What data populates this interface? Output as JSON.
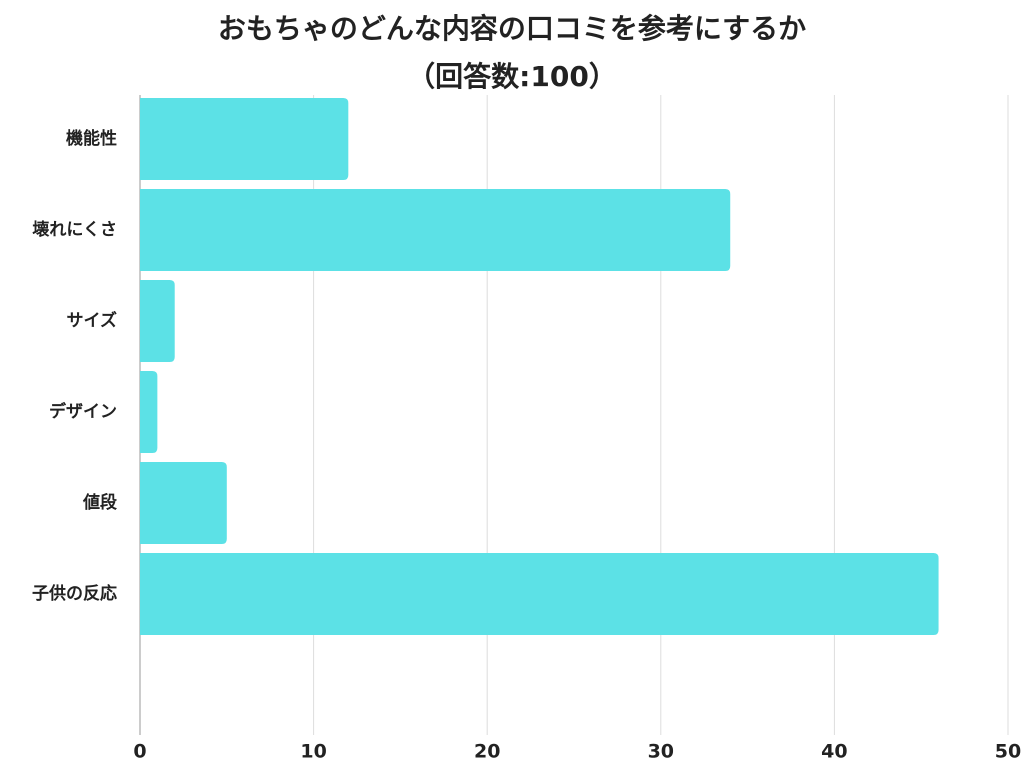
{
  "chart_data": {
    "type": "bar",
    "orientation": "horizontal",
    "title": "おもちゃのどんな内容の口コミを参考にするか",
    "subtitle": "（回答数:100）",
    "categories": [
      "機能性",
      "壊れにくさ",
      "サイズ",
      "デザイン",
      "値段",
      "子供の反応"
    ],
    "values": [
      12,
      34,
      2,
      1,
      5,
      46
    ],
    "color": "#5ce1e6",
    "xlim": [
      0,
      50
    ],
    "xticks": [
      0,
      10,
      20,
      30,
      40,
      50
    ],
    "grid": true
  }
}
